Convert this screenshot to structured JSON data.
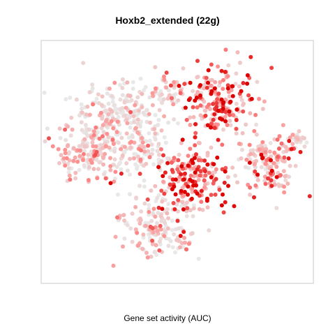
{
  "chart_data": {
    "type": "scatter",
    "title": "Hoxb2_extended (22g)",
    "xlabel": "Gene set activity (AUC)",
    "ylabel": "",
    "grid": false,
    "legend": "none",
    "color_scale": {
      "low": "#e8e8e8",
      "mid": "#ff8c8c",
      "high": "#dd0000"
    },
    "xlim": [
      0,
      1
    ],
    "ylim": [
      0,
      1
    ],
    "clusters": [
      {
        "name": "upper-right",
        "cx": 0.66,
        "cy": 0.76,
        "rx": 0.13,
        "ry": 0.13,
        "n": 210,
        "activity": 0.78
      },
      {
        "name": "upper-center",
        "cx": 0.46,
        "cy": 0.79,
        "rx": 0.07,
        "ry": 0.09,
        "n": 60,
        "activity": 0.25
      },
      {
        "name": "upper-left",
        "cx": 0.25,
        "cy": 0.72,
        "rx": 0.15,
        "ry": 0.12,
        "n": 170,
        "activity": 0.12
      },
      {
        "name": "left",
        "cx": 0.17,
        "cy": 0.55,
        "rx": 0.14,
        "ry": 0.13,
        "n": 180,
        "activity": 0.28
      },
      {
        "name": "center-left",
        "cx": 0.36,
        "cy": 0.55,
        "rx": 0.1,
        "ry": 0.13,
        "n": 120,
        "activity": 0.18
      },
      {
        "name": "center",
        "cx": 0.56,
        "cy": 0.43,
        "rx": 0.12,
        "ry": 0.13,
        "n": 200,
        "activity": 0.82
      },
      {
        "name": "right",
        "cx": 0.85,
        "cy": 0.49,
        "rx": 0.09,
        "ry": 0.11,
        "n": 140,
        "activity": 0.55
      },
      {
        "name": "right-tip",
        "cx": 0.95,
        "cy": 0.59,
        "rx": 0.04,
        "ry": 0.04,
        "n": 30,
        "activity": 0.45
      },
      {
        "name": "bottom",
        "cx": 0.43,
        "cy": 0.22,
        "rx": 0.14,
        "ry": 0.11,
        "n": 170,
        "activity": 0.22
      }
    ]
  }
}
